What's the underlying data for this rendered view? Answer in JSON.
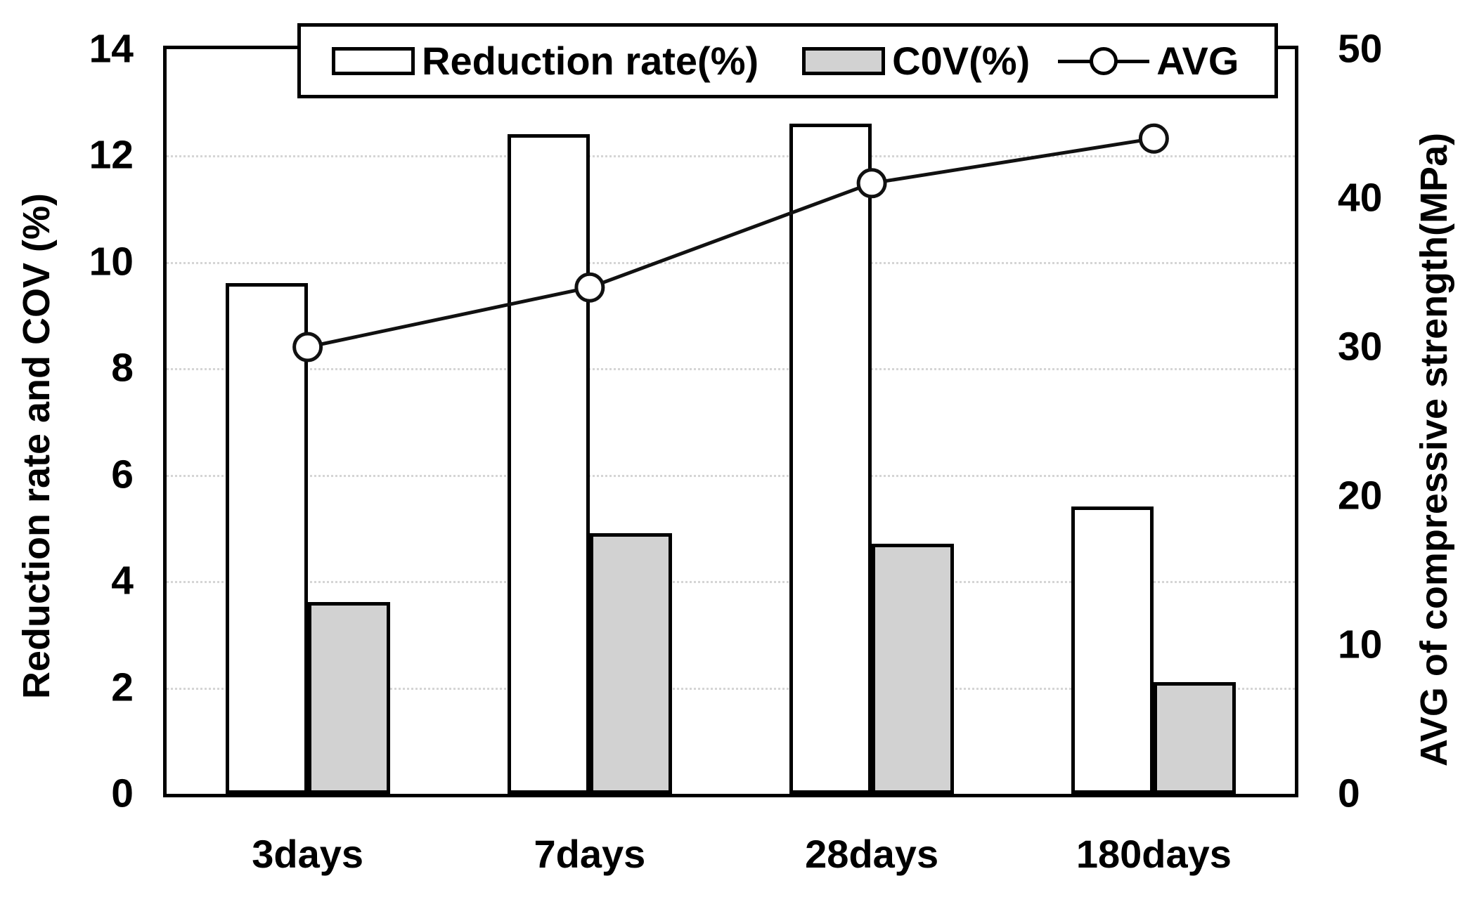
{
  "chart_data": {
    "type": "bar",
    "subtype": "clustered bars with overlaid line on secondary axis",
    "categories": [
      "3days",
      "7days",
      "28days",
      "180days"
    ],
    "series": [
      {
        "name": "Reduction rate(%)",
        "render": "bar",
        "axis": "left",
        "values": [
          9.6,
          12.4,
          12.6,
          5.4
        ],
        "fill": "#ffffff",
        "border": "#000000"
      },
      {
        "name": "C0V(%)",
        "render": "bar",
        "axis": "left",
        "values": [
          3.6,
          4.9,
          4.7,
          2.1
        ],
        "fill": "#d2d2d2",
        "border": "#000000"
      },
      {
        "name": "AVG",
        "render": "line",
        "axis": "right",
        "values": [
          30,
          34,
          41,
          44
        ],
        "color": "#111111",
        "marker": "open-circle"
      }
    ],
    "left_axis": {
      "label": "Reduction rate and COV (%)",
      "min": 0,
      "max": 14,
      "step": 2,
      "tick_labels": [
        "0",
        "2",
        "4",
        "6",
        "8",
        "10",
        "12",
        "14"
      ]
    },
    "right_axis": {
      "label": "AVG of compressive strength(MPa)",
      "min": 0,
      "max": 50,
      "step": 10,
      "tick_labels": [
        "0",
        "10",
        "20",
        "30",
        "40",
        "50"
      ]
    },
    "xlabel": "",
    "title": "",
    "grid": {
      "horizontal": true,
      "style": "dotted",
      "at_left_values": [
        2,
        4,
        6,
        8,
        10,
        12
      ]
    },
    "legend_position": "top-inside-border"
  },
  "legend": {
    "items": [
      {
        "label": "Reduction rate(%)",
        "swatch": "white-bar"
      },
      {
        "label": "C0V(%)",
        "swatch": "gray-bar"
      },
      {
        "label": "AVG",
        "swatch": "line-with-circle-marker"
      }
    ]
  },
  "colors": {
    "background": "#ffffff",
    "bar_white_fill": "#ffffff",
    "bar_gray_fill": "#d2d2d2",
    "bar_border": "#000000",
    "line": "#111111",
    "grid": "#d5d5d5",
    "text": "#000000",
    "plot_border": "#000000"
  }
}
